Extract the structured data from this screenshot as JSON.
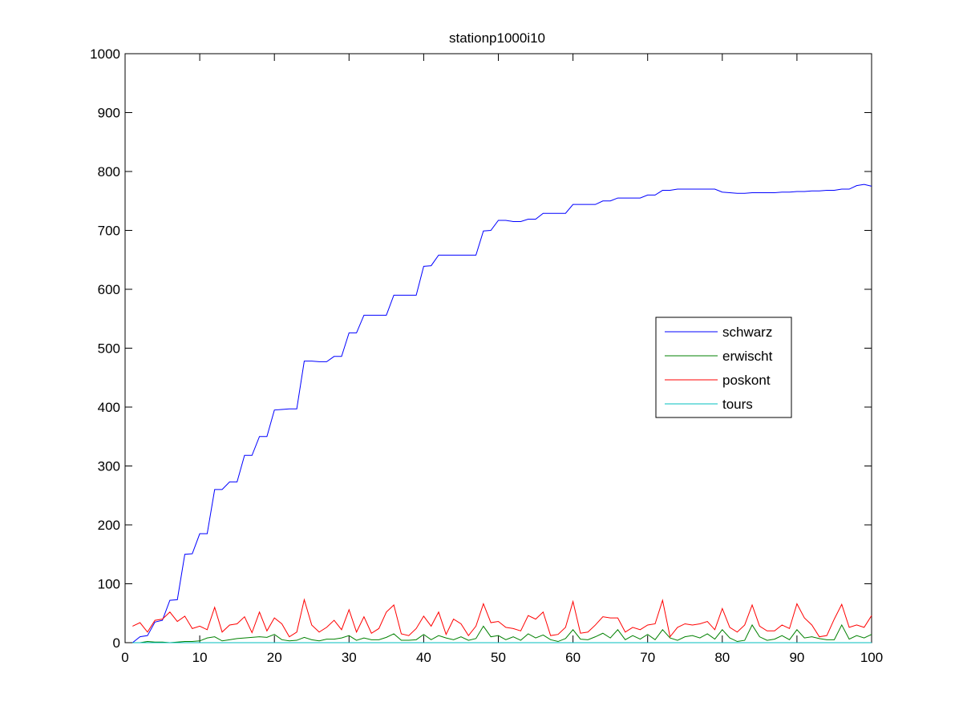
{
  "chart_data": {
    "type": "line",
    "title": "stationp1000i10",
    "xlabel": "",
    "ylabel": "",
    "xlim": [
      0,
      100
    ],
    "ylim": [
      0,
      1000
    ],
    "xticks": [
      0,
      10,
      20,
      30,
      40,
      50,
      60,
      70,
      80,
      90,
      100
    ],
    "yticks": [
      0,
      100,
      200,
      300,
      400,
      500,
      600,
      700,
      800,
      900,
      1000
    ],
    "grid": false,
    "legend_position": "center-right",
    "x": [
      1,
      2,
      3,
      4,
      5,
      6,
      7,
      8,
      9,
      10,
      11,
      12,
      13,
      14,
      15,
      16,
      17,
      18,
      19,
      20,
      21,
      22,
      23,
      24,
      25,
      26,
      27,
      28,
      29,
      30,
      31,
      32,
      33,
      34,
      35,
      36,
      37,
      38,
      39,
      40,
      41,
      42,
      43,
      44,
      45,
      46,
      47,
      48,
      49,
      50,
      51,
      52,
      53,
      54,
      55,
      56,
      57,
      58,
      59,
      60,
      61,
      62,
      63,
      64,
      65,
      66,
      67,
      68,
      69,
      70,
      71,
      72,
      73,
      74,
      75,
      76,
      77,
      78,
      79,
      80,
      81,
      82,
      83,
      84,
      85,
      86,
      87,
      88,
      89,
      90,
      91,
      92,
      93,
      94,
      95,
      96,
      97,
      98,
      99,
      100
    ],
    "series": [
      {
        "name": "schwarz",
        "color": "#0000ff",
        "values": [
          0,
          10,
          12,
          35,
          38,
          72,
          73,
          150,
          151,
          185,
          185,
          260,
          260,
          273,
          273,
          318,
          318,
          350,
          350,
          395,
          396,
          397,
          397,
          478,
          478,
          477,
          477,
          486,
          486,
          526,
          526,
          556,
          556,
          556,
          556,
          590,
          590,
          590,
          590,
          639,
          640,
          658,
          658,
          658,
          658,
          658,
          658,
          699,
          700,
          717,
          717,
          715,
          715,
          719,
          719,
          729,
          729,
          729,
          729,
          744,
          744,
          744,
          744,
          750,
          750,
          755,
          755,
          755,
          755,
          760,
          760,
          768,
          768,
          770,
          770,
          770,
          770,
          770,
          770,
          765,
          764,
          763,
          763,
          764,
          764,
          764,
          764,
          765,
          765,
          766,
          766,
          767,
          767,
          768,
          768,
          770,
          770,
          776,
          778,
          775
        ]
      },
      {
        "name": "erwischt",
        "color": "#008000",
        "values": [
          0,
          0,
          2,
          1,
          1,
          0,
          1,
          2,
          2,
          3,
          8,
          10,
          3,
          5,
          7,
          8,
          9,
          10,
          9,
          14,
          5,
          3,
          4,
          9,
          5,
          3,
          6,
          6,
          8,
          12,
          4,
          8,
          5,
          5,
          9,
          15,
          4,
          4,
          5,
          14,
          5,
          12,
          8,
          5,
          10,
          4,
          7,
          28,
          10,
          12,
          5,
          10,
          4,
          15,
          8,
          13,
          5,
          2,
          7,
          22,
          6,
          5,
          10,
          16,
          8,
          22,
          5,
          12,
          6,
          14,
          5,
          22,
          8,
          4,
          10,
          12,
          8,
          15,
          6,
          22,
          8,
          2,
          4,
          30,
          10,
          4,
          6,
          12,
          5,
          22,
          8,
          10,
          7,
          5,
          5,
          30,
          6,
          12,
          8,
          14
        ]
      },
      {
        "name": "poskont",
        "color": "#ff0000",
        "values": [
          28,
          34,
          18,
          38,
          40,
          52,
          36,
          45,
          24,
          28,
          22,
          60,
          18,
          30,
          32,
          44,
          17,
          52,
          20,
          42,
          32,
          10,
          18,
          73,
          30,
          18,
          26,
          38,
          22,
          56,
          18,
          44,
          16,
          24,
          52,
          64,
          15,
          12,
          24,
          45,
          28,
          52,
          14,
          40,
          32,
          12,
          28,
          66,
          34,
          36,
          26,
          24,
          20,
          46,
          40,
          52,
          12,
          14,
          26,
          70,
          16,
          18,
          30,
          44,
          42,
          42,
          18,
          26,
          22,
          30,
          32,
          72,
          10,
          26,
          32,
          30,
          32,
          36,
          22,
          58,
          26,
          18,
          30,
          64,
          28,
          20,
          20,
          30,
          24,
          66,
          42,
          30,
          10,
          12,
          40,
          65,
          26,
          30,
          26,
          46
        ]
      },
      {
        "name": "tours",
        "color": "#00bfbf",
        "values": [
          0,
          0,
          0,
          0,
          0,
          0,
          0,
          0,
          0,
          0,
          0,
          0,
          0,
          0,
          0,
          0,
          0,
          0,
          0,
          0,
          0,
          0,
          0,
          0,
          0,
          0,
          0,
          0,
          0,
          0,
          0,
          0,
          0,
          0,
          0,
          0,
          0,
          0,
          0,
          0,
          0,
          0,
          0,
          0,
          0,
          0,
          0,
          0,
          0,
          0,
          0,
          0,
          0,
          0,
          0,
          0,
          0,
          0,
          0,
          0,
          0,
          0,
          0,
          0,
          0,
          0,
          0,
          0,
          0,
          0,
          0,
          0,
          0,
          0,
          0,
          0,
          0,
          0,
          0,
          0,
          0,
          0,
          0,
          0,
          0,
          0,
          0,
          0,
          0,
          0,
          0,
          0,
          0,
          0,
          0,
          0,
          0,
          0,
          0,
          0
        ]
      }
    ]
  }
}
